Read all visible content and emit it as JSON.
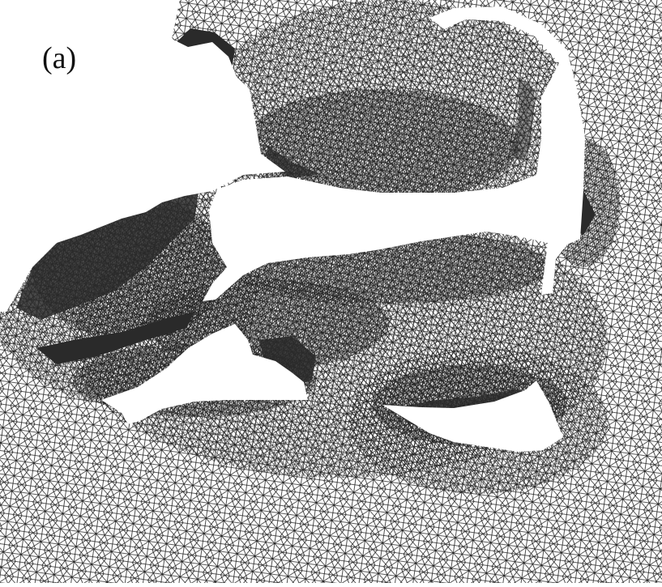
{
  "label": "(a)"
}
